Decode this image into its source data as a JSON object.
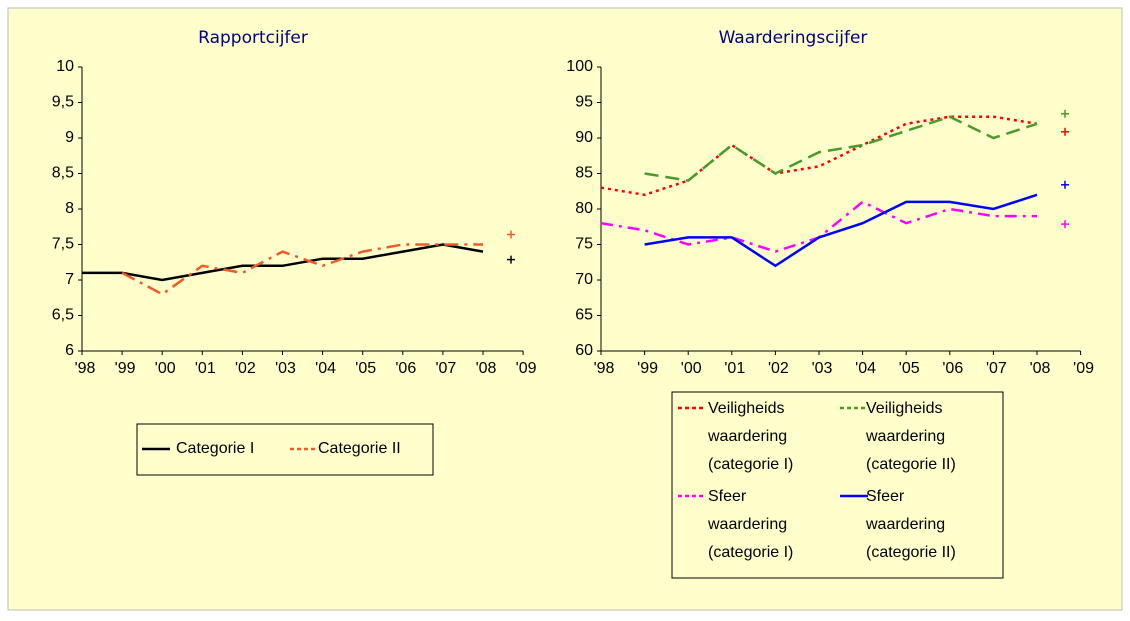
{
  "chart_data": [
    {
      "type": "line",
      "title": "Rapportcijfer",
      "categories": [
        "'98",
        "'99",
        "'00",
        "'01",
        "'02",
        "'03",
        "'04",
        "'05",
        "'06",
        "'07",
        "'08",
        "'09"
      ],
      "series": [
        {
          "name": "Categorie I",
          "color": "#000000",
          "dash": "none",
          "values": [
            7.1,
            7.1,
            7.0,
            7.1,
            7.2,
            7.2,
            7.3,
            7.3,
            7.4,
            7.5,
            7.4,
            null
          ]
        },
        {
          "name": "Categorie II",
          "color": "#f05a28",
          "dash": "14,6,3,6",
          "values": [
            null,
            7.1,
            6.8,
            7.2,
            7.1,
            7.4,
            7.2,
            7.4,
            7.5,
            7.5,
            7.5,
            null
          ]
        }
      ],
      "ylim": [
        6,
        10
      ],
      "yticks": [
        6,
        {
          "value": 6.5,
          "label": "6,5"
        },
        7,
        {
          "value": 7.5,
          "label": "7,5"
        },
        8,
        {
          "value": 8.5,
          "label": "8,5"
        },
        9,
        {
          "value": 9.5,
          "label": "9,5"
        },
        10
      ]
    },
    {
      "type": "line",
      "title": "Waarderingscijfer",
      "categories": [
        "'98",
        "'99",
        "'00",
        "'01",
        "'02",
        "'03",
        "'04",
        "'05",
        "'06",
        "'07",
        "'08",
        "'09"
      ],
      "series": [
        {
          "name": "Veiligheids waardering (categorie I)",
          "color": "#ff0000",
          "dash": "3,4",
          "values": [
            83,
            82,
            84,
            89,
            85,
            86,
            89,
            92,
            93,
            93,
            92,
            null
          ]
        },
        {
          "name": "Veiligheids waardering (categorie II)",
          "color": "#4a9a2a",
          "dash": "14,7",
          "values": [
            null,
            85,
            84,
            89,
            85,
            88,
            89,
            91,
            93,
            90,
            92,
            null
          ]
        },
        {
          "name": "Sfeer waardering (categorie I)",
          "color": "#ff00ff",
          "dash": "12,6,3,6",
          "values": [
            78,
            77,
            75,
            76,
            74,
            76,
            81,
            78,
            80,
            79,
            79,
            null
          ]
        },
        {
          "name": "Sfeer waardering (categorie II)",
          "color": "#0000ff",
          "dash": "none",
          "values": [
            null,
            75,
            76,
            76,
            72,
            76,
            78,
            81,
            81,
            80,
            82,
            null
          ]
        }
      ],
      "ylim": [
        60,
        100
      ],
      "yticks": [
        60,
        65,
        70,
        75,
        80,
        85,
        90,
        95,
        100
      ]
    }
  ]
}
